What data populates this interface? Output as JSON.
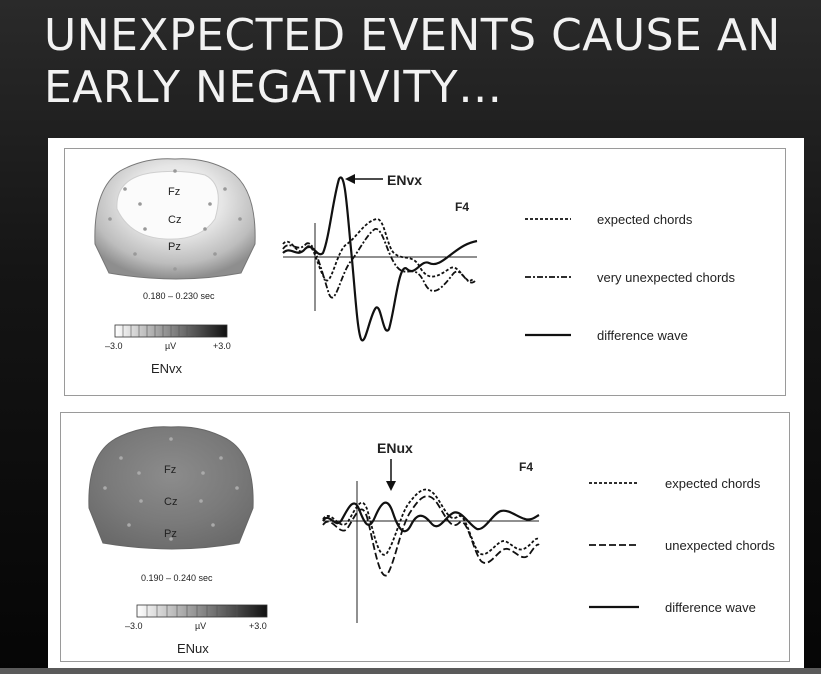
{
  "slide": {
    "title_line1": "UNEXPECTED EVENTS CAUSE AN",
    "title_line2": "EARLY NEGATIVITY…"
  },
  "panels": [
    {
      "map": {
        "electrodes": [
          "Fz",
          "Cz",
          "Pz"
        ],
        "time_window": "0.180 – 0.230 sec",
        "scale_min": "–3.0",
        "scale_unit": "µV",
        "scale_max": "+3.0",
        "component": "ENvx"
      },
      "waveform": {
        "peak_label": "ENvx",
        "electrode": "F4"
      },
      "legend": [
        "expected chords",
        "very unexpected chords",
        "difference wave"
      ]
    },
    {
      "map": {
        "electrodes": [
          "Fz",
          "Cz",
          "Pz"
        ],
        "time_window": "0.190 – 0.240 sec",
        "scale_min": "–3.0",
        "scale_unit": "µV",
        "scale_max": "+3.0",
        "component": "ENux"
      },
      "waveform": {
        "peak_label": "ENux",
        "electrode": "F4"
      },
      "legend": [
        "expected chords",
        "unexpected chords",
        "difference wave"
      ]
    }
  ],
  "colors": {
    "map_top_fill": "#d6d6d6",
    "map_top_highlight": "#f4f4f4",
    "map_bottom_fill": "#7e7e7e",
    "trace": "#111111"
  }
}
